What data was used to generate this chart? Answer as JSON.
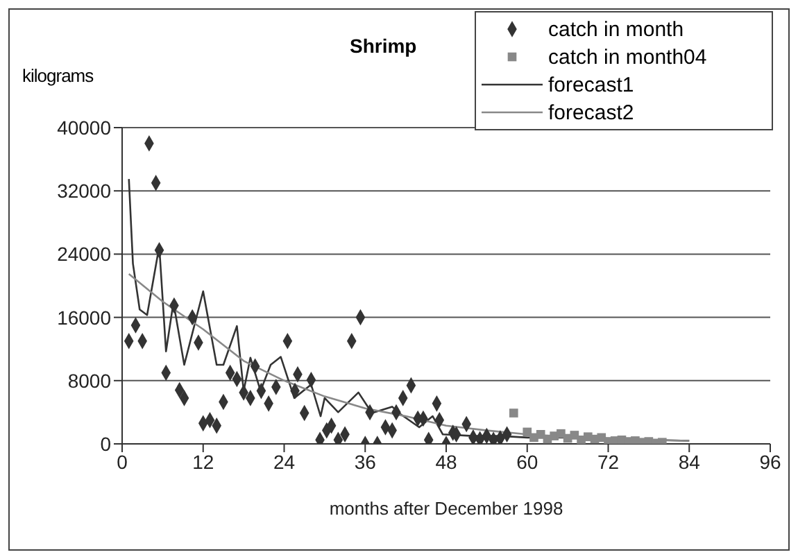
{
  "chart_data": {
    "type": "scatter",
    "title": "Shrimp",
    "ylabel": "kilograms",
    "xlabel": "months after December 1998",
    "xlim": [
      0,
      96
    ],
    "xticks": [
      0,
      12,
      24,
      36,
      48,
      60,
      72,
      84,
      96
    ],
    "ylim": [
      0,
      40000
    ],
    "yticks": [
      0,
      8000,
      16000,
      24000,
      32000,
      40000
    ],
    "grid": "y",
    "legend": "top right",
    "series": [
      {
        "name": "catch in month",
        "marker": "diamond",
        "color": "#333333",
        "x": [
          1,
          2,
          3,
          4,
          5,
          5.5,
          6.5,
          7.7,
          8.5,
          9.2,
          10.4,
          11.3,
          12,
          13,
          14,
          15,
          16,
          17,
          18,
          19,
          19.7,
          20.6,
          21.7,
          22.8,
          24.5,
          25.6,
          26,
          27,
          28,
          29.3,
          30.3,
          31,
          32,
          33,
          34,
          35.3,
          36,
          36.7,
          37.8,
          39,
          40,
          40.6,
          41.6,
          42.8,
          43.8,
          44.6,
          45.4,
          46.6,
          47,
          48,
          49,
          49.5,
          51,
          52,
          53,
          54,
          55,
          56,
          57
        ],
        "values": [
          13000,
          15000,
          13000,
          38000,
          33000,
          24500,
          9000,
          17500,
          6800,
          5800,
          16000,
          12800,
          2600,
          3000,
          2300,
          5300,
          9000,
          8200,
          6500,
          5800,
          9800,
          6700,
          5100,
          7200,
          13000,
          6700,
          8800,
          3900,
          8100,
          500,
          1700,
          2300,
          500,
          1200,
          13000,
          16000,
          0,
          4000,
          0,
          2100,
          1700,
          4000,
          5800,
          7400,
          3200,
          3200,
          500,
          5100,
          3000,
          0,
          1400,
          1200,
          2500,
          800,
          600,
          1000,
          500,
          700,
          1200
        ]
      },
      {
        "name": "catch in month04",
        "marker": "square",
        "color": "#888888",
        "x": [
          58,
          60,
          61,
          62,
          63,
          64,
          65,
          66,
          67,
          68,
          69,
          70,
          71,
          72,
          73,
          74,
          75,
          76,
          77,
          78,
          79,
          80
        ],
        "values": [
          3900,
          1500,
          800,
          1200,
          600,
          1000,
          1300,
          700,
          1100,
          500,
          900,
          600,
          800,
          300,
          400,
          500,
          300,
          400,
          200,
          300,
          100,
          200
        ]
      },
      {
        "name": "forecast1",
        "type": "line",
        "marker": "none",
        "color": "#333333",
        "x": [
          1,
          1.6,
          2.6,
          3.7,
          5.5,
          6.5,
          7.6,
          9.2,
          12,
          14,
          15,
          17,
          18,
          19,
          20.5,
          22,
          23.5,
          25.5,
          28,
          29.4,
          30,
          32,
          35,
          37,
          40,
          41,
          44,
          46,
          47.5,
          52,
          56,
          60,
          66,
          72,
          78,
          84
        ],
        "values": [
          33500,
          22800,
          17000,
          16300,
          25000,
          11700,
          17900,
          10000,
          19300,
          10000,
          10000,
          14900,
          6700,
          10900,
          6700,
          10000,
          11000,
          5800,
          7500,
          3500,
          5800,
          4000,
          6500,
          3900,
          4700,
          3900,
          2100,
          3500,
          1200,
          1000,
          1000,
          800,
          800,
          600,
          500,
          400
        ]
      },
      {
        "name": "forecast2",
        "type": "line",
        "marker": "none",
        "color": "#888888",
        "x": [
          1,
          6,
          12,
          18,
          24,
          30,
          36,
          42,
          48,
          54,
          60,
          66,
          72,
          78,
          84
        ],
        "values": [
          21500,
          18000,
          14500,
          10500,
          8000,
          6000,
          4500,
          3500,
          2300,
          1700,
          1200,
          900,
          700,
          500,
          400
        ]
      }
    ]
  }
}
